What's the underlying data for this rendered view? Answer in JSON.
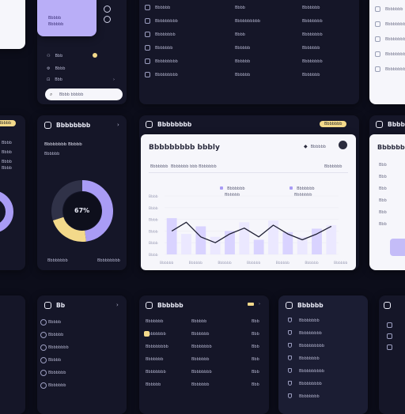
{
  "colors": {
    "bg": "#0c0d1a",
    "card": "#151628",
    "accent_purple": "#a99cf5",
    "accent_yellow": "#f3d98a",
    "light_card": "#f6f6fb"
  },
  "left_top": {
    "profile_lines": [
      "Bbbbb",
      "Bbbbbb"
    ],
    "list": [
      "Bbb",
      "Bbbb",
      "Bbb"
    ],
    "search_placeholder": "Bbbb bbbbb"
  },
  "top_list": {
    "rows": [
      [
        "Bbbbbb",
        "Bbbb",
        "Bbbbbbb"
      ],
      [
        "Bbbbbbbbb",
        "Bbbbbbbbbb",
        "Bbbbbbbb"
      ],
      [
        "Bbbbbbbb",
        "Bbbb",
        "Bbbbbbbb"
      ],
      [
        "Bbbbbbb",
        "Bbbbbb",
        "Bbbbbbb"
      ],
      [
        "Bbbbbbbbb",
        "Bbbbbb",
        "Bbbbbbbb"
      ],
      [
        "Bbbbbbbbb",
        "Bbbbbb",
        "Bbbbbbb"
      ]
    ]
  },
  "right_top": {
    "rows": [
      "Bbbbbbb",
      "Bbbbbbbb",
      "Bbbbbbbb",
      "Bbbbbbbb",
      "Bbbbbbbb"
    ]
  },
  "left_mid": {
    "pill": "Bbbbb",
    "lines": [
      "Bbbb",
      "Bbbb",
      "Bbbb",
      "Bbbb"
    ]
  },
  "donut_card": {
    "title": "Bbbbbbbb",
    "subtitle": "Bbbbbbbb Bbbbb",
    "subsub": "Bbbbbb",
    "center_label": "67%",
    "segments": [
      {
        "value": 48,
        "color": "#a99cf5"
      },
      {
        "value": 22,
        "color": "#f3d98a"
      },
      {
        "value": 30,
        "color": "#303248"
      }
    ],
    "footer": [
      "Bbbbbbbb",
      "Bbbbbbbbb"
    ]
  },
  "chart_window": {
    "brand": "Bbbbbbbb",
    "pill": "Bbbbbbb",
    "heading": "Bbbbbbbbb bbbly",
    "dropdown": "Bbbbbb",
    "tabs": [
      "Bbbbbbb",
      "Bbbbbbb bbb Bbbbbbb"
    ],
    "right_label": "Bbbbbbb",
    "legend": [
      {
        "name": "Bbbbbbb",
        "sub": "Bbbbbb"
      },
      {
        "name": "Bbbbbbb",
        "sub": "Bbbbbbb"
      }
    ]
  },
  "chart_data": {
    "type": "bar",
    "categories": [
      "Bbbbbbb",
      "Bbbbbbb",
      "Bbbbbbb",
      "Bbbbbbb",
      "Bbbbbbb",
      "Bbbbbbb",
      "Bbbbbbb",
      "Bbbbbbb",
      "Bbbbbbb",
      "Bbbbbbb",
      "Bbbbbbb",
      "Bbbbbbb"
    ],
    "x_labels": [
      "Bbbbbb",
      "Bbbbbb",
      "Bbbbbb",
      "Bbbbbb",
      "Bbbbbb",
      "Bbbbbb",
      "Bbbbbb"
    ],
    "y_ticks": [
      "Bbbb",
      "Bbbb",
      "Bbbb",
      "Bbbb",
      "Bbbb",
      "Bbbb"
    ],
    "series": [
      {
        "values": [
          62,
          35,
          48,
          30,
          40,
          55,
          25,
          58,
          38,
          30,
          44,
          50
        ]
      },
      {
        "values": [
          40,
          55,
          30,
          20,
          35,
          45,
          30,
          50,
          35,
          25,
          35,
          48
        ]
      }
    ],
    "ylim": [
      0,
      100
    ],
    "grid": true
  },
  "right_mid": {
    "title": "Bbbbbbbb",
    "heading": "Bbbbbbbb",
    "rows": [
      "Bbb",
      "Bbb",
      "Bbb",
      "Bbb",
      "Bbb",
      "Bbb"
    ]
  },
  "bottom_cards": [
    {
      "title": "Bb",
      "rows": [
        "Bbbbb",
        "Bbbbbb",
        "Bbbbbbbb",
        "Bbbbb",
        "Bbbbbbb",
        "Bbbbbbb"
      ]
    },
    {
      "title": "Bbbbbb",
      "rows": [
        [
          "Bbbbbbb",
          "Bbbbbb",
          "Bbb"
        ],
        [
          "Bbbbbbbb",
          "Bbbbbbb",
          "Bbb"
        ],
        [
          "Bbbbbbbbb",
          "Bbbbbbbb",
          "Bbb"
        ],
        [
          "Bbbbbbb",
          "Bbbbbbb",
          "Bbb"
        ],
        [
          "Bbbbbbbb",
          "Bbbbbbbb",
          "Bbb"
        ],
        [
          "Bbbbbb",
          "Bbbbbbb",
          "Bbb"
        ]
      ]
    },
    {
      "title": "Bbbbbb",
      "rows": [
        "Bbbbbbbb",
        "Bbbbbbbbb",
        "Bbbbbbbbbb",
        "Bbbbbbbb",
        "Bbbbbbbbbb",
        "Bbbbbbbbb",
        "Bbbbbbbb"
      ]
    }
  ]
}
